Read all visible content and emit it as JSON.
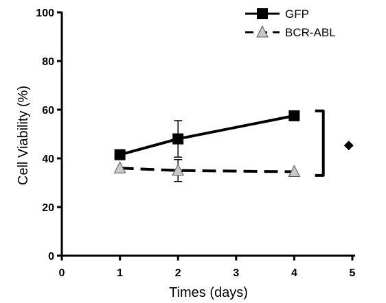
{
  "chart_data": {
    "type": "line",
    "xlabel": "Times (days)",
    "ylabel": "Cell Viability (%)",
    "xlim": [
      0,
      5
    ],
    "ylim": [
      0,
      100
    ],
    "xticks": [
      "0",
      "1",
      "2",
      "3",
      "4",
      "5"
    ],
    "yticks": [
      "0",
      "20",
      "40",
      "60",
      "80",
      "100"
    ],
    "grid": false,
    "legend_position": "top-right",
    "series": [
      {
        "name": "GFP",
        "marker": "square",
        "line_style": "solid",
        "color": "#000000",
        "x": [
          1,
          2,
          4
        ],
        "y": [
          41.5,
          48,
          57.5
        ],
        "error": [
          0,
          7.5,
          0
        ]
      },
      {
        "name": "BCR-ABL",
        "marker": "triangle",
        "line_style": "dashed",
        "color": "#000000",
        "marker_fill": "#c8c8c8",
        "x": [
          1,
          2,
          4
        ],
        "y": [
          36,
          35,
          34.5
        ],
        "error": [
          0,
          4.5,
          0
        ]
      }
    ],
    "annotations": [
      {
        "type": "bracket",
        "x": 4.5,
        "y_range": [
          33,
          59.5
        ]
      },
      {
        "type": "significance-diamond",
        "x": 4.95,
        "y": 45
      }
    ]
  }
}
